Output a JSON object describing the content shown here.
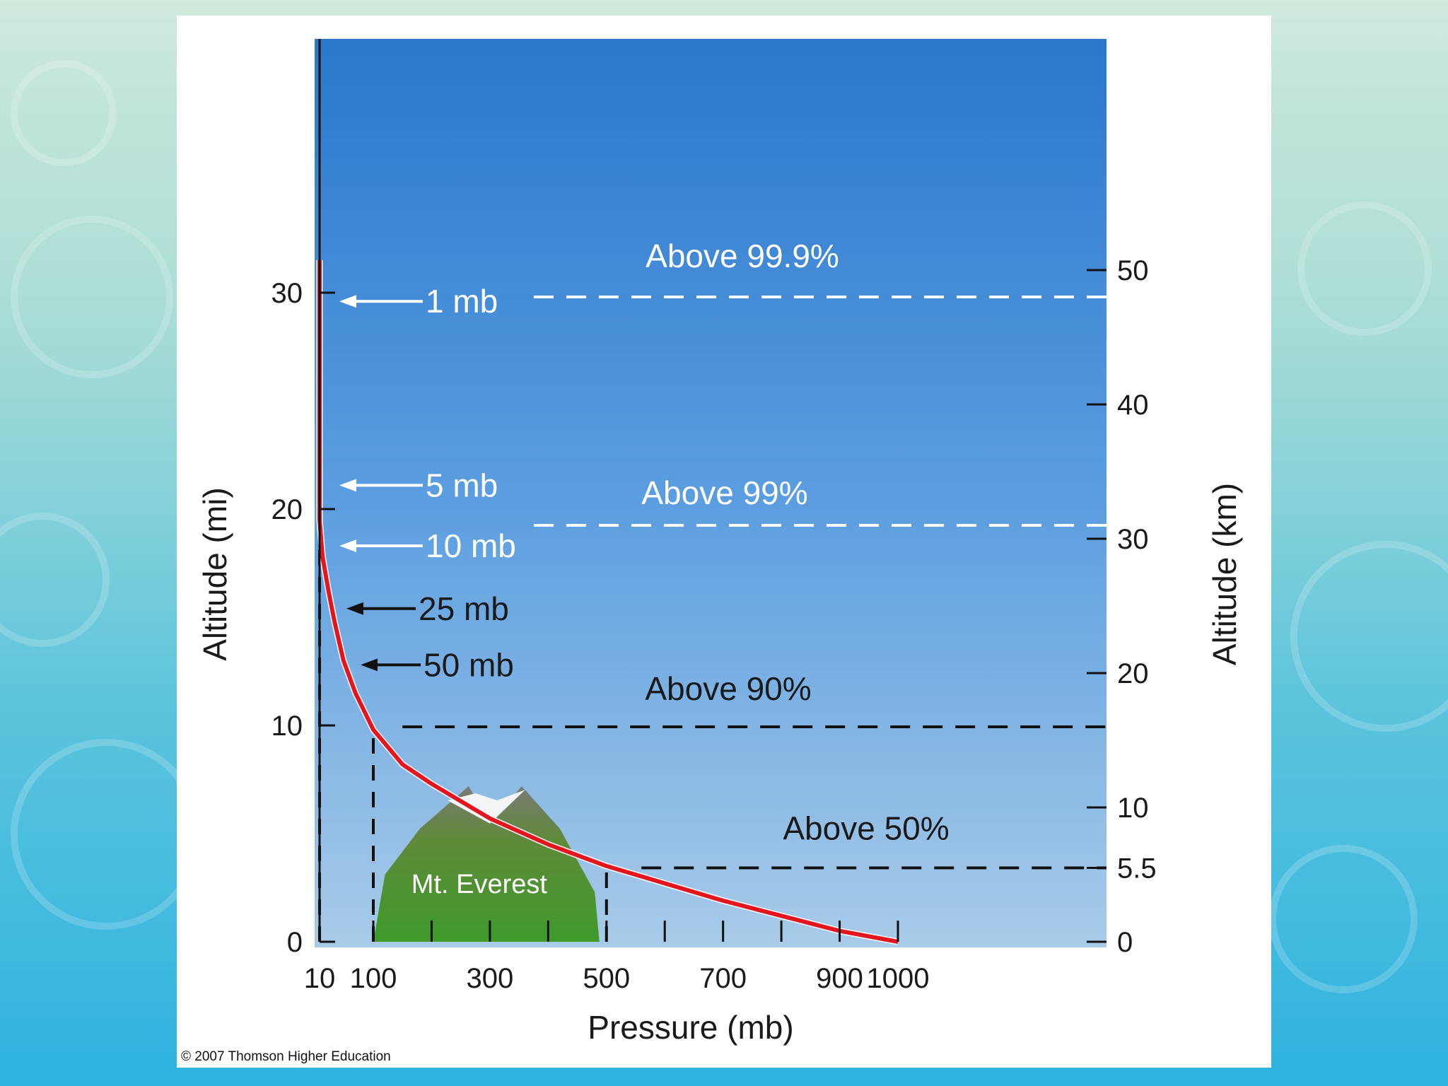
{
  "colors": {
    "sky_top": "#2a77cc",
    "sky_bottom": "#a8cbe8",
    "curve": "#e3161f",
    "grid_dash": "#111111",
    "card": "#ffffff"
  },
  "copyright": "© 2007 Thomson Higher Education",
  "mountain": {
    "label": "Mt. Everest",
    "icon": "mountain-illustration"
  },
  "chart_data": {
    "type": "line",
    "title": "",
    "xlabel": "Pressure (mb)",
    "ylabel": "Altitude (mi)",
    "ylabel_right": "Altitude (km)",
    "x_ticks": [
      10,
      100,
      300,
      500,
      700,
      900,
      1000
    ],
    "x_minor_ticks": [
      200,
      400,
      600,
      800
    ],
    "y_ticks_left": [
      0,
      10,
      20,
      30
    ],
    "y_ticks_right": [
      0,
      5.5,
      10,
      20,
      30,
      40,
      50
    ],
    "xlim": [
      10,
      1000
    ],
    "ylim_mi": [
      0,
      31.5
    ],
    "ylim_km": [
      0,
      50.7
    ],
    "grid": false,
    "series": [
      {
        "points": [
          {
            "x": 1000,
            "y": 0
          },
          {
            "x": 900,
            "y": 0.5
          },
          {
            "x": 800,
            "y": 1.2
          },
          {
            "x": 700,
            "y": 1.9
          },
          {
            "x": 600,
            "y": 2.7
          },
          {
            "x": 500,
            "y": 3.5
          },
          {
            "x": 400,
            "y": 4.5
          },
          {
            "x": 300,
            "y": 5.7
          },
          {
            "x": 200,
            "y": 7.3
          },
          {
            "x": 150,
            "y": 8.2
          },
          {
            "x": 100,
            "y": 9.8
          },
          {
            "x": 70,
            "y": 11.5
          },
          {
            "x": 50,
            "y": 13.0
          },
          {
            "x": 35,
            "y": 14.8
          },
          {
            "x": 25,
            "y": 16.2
          },
          {
            "x": 15,
            "y": 17.8
          },
          {
            "x": 10,
            "y": 19.5
          },
          {
            "x": 10,
            "y": 31.5
          }
        ]
      }
    ],
    "pressure_markers": [
      {
        "label": "1 mb",
        "altitude_mi": 29.6,
        "color": "white"
      },
      {
        "label": "5 mb",
        "altitude_mi": 21.1,
        "color": "white"
      },
      {
        "label": "10 mb",
        "altitude_mi": 18.3,
        "color": "white"
      },
      {
        "label": "25 mb",
        "altitude_mi": 15.4,
        "color": "black"
      },
      {
        "label": "50 mb",
        "altitude_mi": 12.8,
        "color": "black"
      }
    ],
    "mass_lines": [
      {
        "label": "Above 99.9%",
        "altitude_km": 48,
        "color": "white"
      },
      {
        "label": "Above 99%",
        "altitude_km": 31,
        "color": "white"
      },
      {
        "label": "Above 90%",
        "altitude_km": 16,
        "color": "black"
      },
      {
        "label": "Above 50%",
        "altitude_km": 5.5,
        "color": "black"
      }
    ]
  }
}
